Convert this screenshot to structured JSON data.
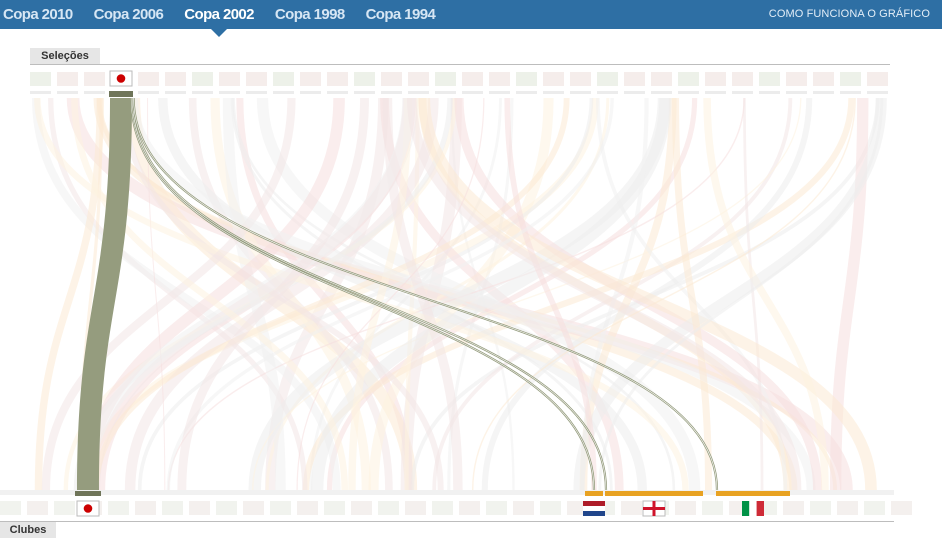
{
  "nav": {
    "tabs": [
      "Copa 2010",
      "Copa 2006",
      "Copa 2002",
      "Copa 1998",
      "Copa 1994"
    ],
    "active_tab": 2,
    "howto": "COMO FUNCIONA O GRÁFICO"
  },
  "labels": {
    "top": "Seleções",
    "bottom": "Clubes"
  },
  "colors": {
    "highlight": "#959c7e",
    "club_bar": "#e8a222",
    "bg_band": "#e8e8e8"
  },
  "chart_data": {
    "type": "sankey",
    "highlighted_team": "Japão",
    "flows": [
      {
        "from": "Japão",
        "to": "Japão",
        "players": 20
      },
      {
        "from": "Japão",
        "to": "Holanda",
        "players": 1
      },
      {
        "from": "Japão",
        "to": "Inglaterra",
        "players": 1
      },
      {
        "from": "Japão",
        "to": "Itália",
        "players": 1
      }
    ],
    "highlighted_clubs": [
      "Holanda",
      "Inglaterra",
      "Itália"
    ]
  }
}
